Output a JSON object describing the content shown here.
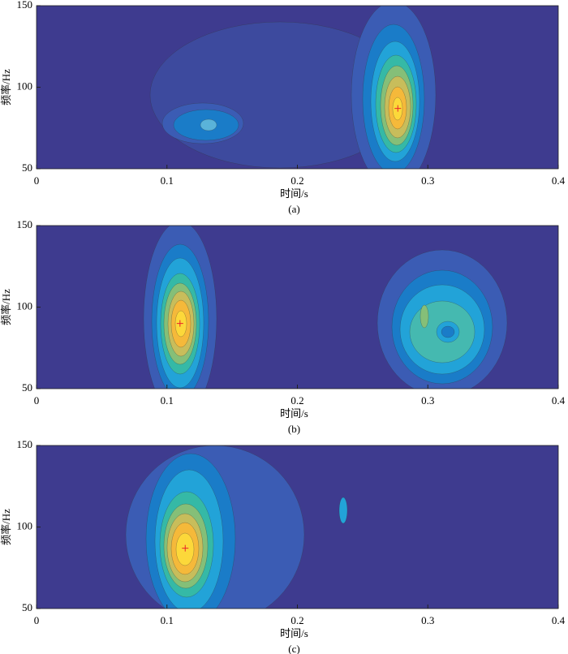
{
  "chart_data": [
    {
      "type": "contour",
      "xlabel": "时间/s",
      "ylabel": "频率/Hz",
      "caption": "(a)",
      "xlim": [
        0,
        0.4
      ],
      "ylim": [
        50,
        150
      ],
      "xticks": [
        0,
        0.1,
        0.2,
        0.3,
        0.4
      ],
      "yticks": [
        50,
        100,
        150
      ],
      "peak": {
        "x": 0.277,
        "y": 87
      },
      "grid": false
    },
    {
      "type": "contour",
      "xlabel": "时间/s",
      "ylabel": "频率/Hz",
      "caption": "(b)",
      "xlim": [
        0,
        0.4
      ],
      "ylim": [
        50,
        150
      ],
      "xticks": [
        0,
        0.1,
        0.2,
        0.3,
        0.4
      ],
      "yticks": [
        50,
        100,
        150
      ],
      "peak": {
        "x": 0.11,
        "y": 90
      },
      "grid": false
    },
    {
      "type": "contour",
      "xlabel": "时间/s",
      "ylabel": "频率/Hz",
      "caption": "(c)",
      "xlim": [
        0,
        0.4
      ],
      "ylim": [
        50,
        150
      ],
      "xticks": [
        0,
        0.1,
        0.2,
        0.3,
        0.4
      ],
      "yticks": [
        50,
        100,
        150
      ],
      "peak": {
        "x": 0.114,
        "y": 87
      },
      "grid": false
    }
  ]
}
